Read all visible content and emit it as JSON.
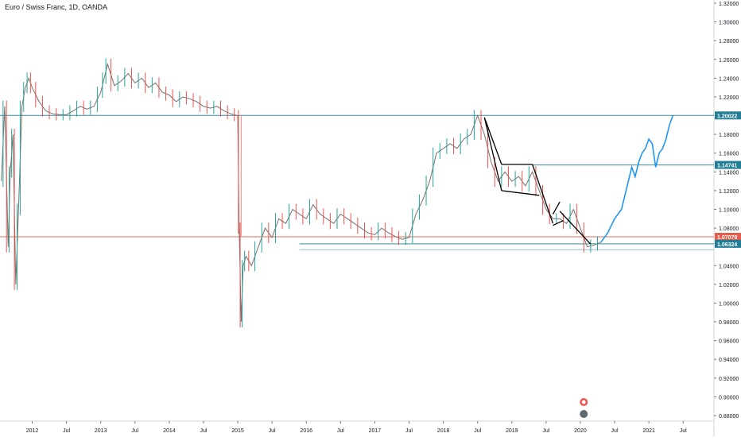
{
  "header": {
    "title": "Euro / Swiss Franc, 1D, OANDA"
  },
  "colors": {
    "up": "#26a69a",
    "down": "#ef5350",
    "candle_body": "#c9a79a",
    "horizontal_line": "#3d9bb5",
    "red_line": "#f28b7e",
    "projection": "#2196f3",
    "pattern": "#000000",
    "label_teal": "#227e94",
    "label_red": "#e35d4c"
  },
  "chart_data": {
    "type": "line",
    "title": "Euro / Swiss Franc, 1D, OANDA",
    "xlabel": "",
    "ylabel": "",
    "ylim": [
      0.87,
      1.325
    ],
    "y_ticks": [
      "1.32000",
      "1.30000",
      "1.28000",
      "1.26000",
      "1.24000",
      "1.22000",
      "1.18000",
      "1.16000",
      "1.14000",
      "1.12000",
      "1.10000",
      "1.08000",
      "1.04000",
      "1.02000",
      "1.00000",
      "0.98000",
      "0.96000",
      "0.94000",
      "0.92000",
      "0.90000",
      "0.88000"
    ],
    "x_ticks": [
      {
        "label": "2012",
        "t": 2012.0
      },
      {
        "label": "Jul",
        "t": 2012.5
      },
      {
        "label": "2013",
        "t": 2013.0
      },
      {
        "label": "Jul",
        "t": 2013.5
      },
      {
        "label": "2014",
        "t": 2014.0
      },
      {
        "label": "Jul",
        "t": 2014.5
      },
      {
        "label": "2015",
        "t": 2015.0
      },
      {
        "label": "Jul",
        "t": 2015.5
      },
      {
        "label": "2016",
        "t": 2016.0
      },
      {
        "label": "Jul",
        "t": 2016.5
      },
      {
        "label": "2017",
        "t": 2017.0
      },
      {
        "label": "Jul",
        "t": 2017.5
      },
      {
        "label": "2018",
        "t": 2018.0
      },
      {
        "label": "Jul",
        "t": 2018.5
      },
      {
        "label": "2019",
        "t": 2019.0
      },
      {
        "label": "Jul",
        "t": 2019.5
      },
      {
        "label": "2020",
        "t": 2020.0
      },
      {
        "label": "Jul",
        "t": 2020.5
      },
      {
        "label": "2021",
        "t": 2021.0
      },
      {
        "label": "Jul",
        "t": 2021.5
      }
    ],
    "price_series": {
      "x": [
        2011.55,
        2011.6,
        2011.65,
        2011.68,
        2011.72,
        2011.76,
        2011.8,
        2011.85,
        2011.9,
        2011.95,
        2012.0,
        2012.1,
        2012.2,
        2012.3,
        2012.4,
        2012.5,
        2012.6,
        2012.7,
        2012.8,
        2012.9,
        2013.0,
        2013.05,
        2013.1,
        2013.2,
        2013.3,
        2013.4,
        2013.5,
        2013.6,
        2013.7,
        2013.8,
        2013.9,
        2014.0,
        2014.1,
        2014.2,
        2014.3,
        2014.4,
        2014.5,
        2014.6,
        2014.7,
        2014.8,
        2014.9,
        2015.0,
        2015.02,
        2015.05,
        2015.08,
        2015.12,
        2015.2,
        2015.3,
        2015.4,
        2015.5,
        2015.6,
        2015.7,
        2015.8,
        2015.9,
        2016.0,
        2016.1,
        2016.2,
        2016.3,
        2016.4,
        2016.5,
        2016.6,
        2016.7,
        2016.8,
        2016.9,
        2017.0,
        2017.1,
        2017.2,
        2017.3,
        2017.4,
        2017.5,
        2017.6,
        2017.7,
        2017.8,
        2017.9,
        2018.0,
        2018.1,
        2018.2,
        2018.3,
        2018.4,
        2018.5,
        2018.6,
        2018.7,
        2018.8,
        2018.9,
        2019.0,
        2019.1,
        2019.2,
        2019.3,
        2019.4,
        2019.5,
        2019.6,
        2019.7,
        2019.8,
        2019.9,
        2020.0,
        2020.1,
        2020.2,
        2020.3
      ],
      "y": [
        1.13,
        1.21,
        1.06,
        1.14,
        1.18,
        1.02,
        1.1,
        1.21,
        1.23,
        1.24,
        1.23,
        1.215,
        1.205,
        1.202,
        1.201,
        1.201,
        1.205,
        1.21,
        1.207,
        1.21,
        1.225,
        1.24,
        1.255,
        1.232,
        1.237,
        1.245,
        1.235,
        1.24,
        1.23,
        1.235,
        1.225,
        1.222,
        1.215,
        1.22,
        1.218,
        1.215,
        1.21,
        1.208,
        1.21,
        1.205,
        1.202,
        1.2,
        1.08,
        0.98,
        1.04,
        1.05,
        1.04,
        1.06,
        1.08,
        1.07,
        1.09,
        1.085,
        1.1,
        1.095,
        1.09,
        1.105,
        1.095,
        1.09,
        1.085,
        1.095,
        1.09,
        1.085,
        1.08,
        1.075,
        1.073,
        1.08,
        1.075,
        1.071,
        1.068,
        1.07,
        1.095,
        1.11,
        1.13,
        1.16,
        1.165,
        1.17,
        1.165,
        1.175,
        1.18,
        1.2,
        1.18,
        1.15,
        1.13,
        1.14,
        1.13,
        1.135,
        1.125,
        1.14,
        1.12,
        1.1,
        1.09,
        1.09,
        1.085,
        1.1,
        1.08,
        1.06,
        1.062,
        1.065
      ]
    },
    "projection_series": {
      "x": [
        2020.3,
        2020.4,
        2020.5,
        2020.6,
        2020.7,
        2020.75,
        2020.8,
        2020.85,
        2020.9,
        2020.95,
        2021.0,
        2021.05,
        2021.1,
        2021.15,
        2021.2,
        2021.25,
        2021.3,
        2021.35
      ],
      "y": [
        1.065,
        1.075,
        1.09,
        1.1,
        1.13,
        1.145,
        1.135,
        1.15,
        1.16,
        1.165,
        1.175,
        1.17,
        1.145,
        1.16,
        1.165,
        1.175,
        1.19,
        1.2
      ]
    },
    "pattern_lines": [
      {
        "x1": 2018.6,
        "y1": 1.198,
        "x2": 2018.85,
        "y2": 1.12
      },
      {
        "x1": 2018.6,
        "y1": 1.198,
        "x2": 2018.85,
        "y2": 1.148
      },
      {
        "x1": 2018.85,
        "y1": 1.148,
        "x2": 2019.3,
        "y2": 1.148
      },
      {
        "x1": 2018.85,
        "y1": 1.12,
        "x2": 2019.4,
        "y2": 1.115
      },
      {
        "x1": 2019.3,
        "y1": 1.148,
        "x2": 2019.6,
        "y2": 1.085
      },
      {
        "x1": 2019.6,
        "y1": 1.095,
        "x2": 2019.7,
        "y2": 1.108
      },
      {
        "x1": 2019.6,
        "y1": 1.083,
        "x2": 2019.75,
        "y2": 1.088
      },
      {
        "x1": 2019.7,
        "y1": 1.098,
        "x2": 2020.15,
        "y2": 1.063
      }
    ],
    "horizontal_levels": [
      {
        "value": 1.20022,
        "label": "1.20022",
        "color": "#227e94",
        "from": 2011.0
      },
      {
        "value": 1.14741,
        "label": "1.14741",
        "color": "#227e94",
        "from": 2019.3
      },
      {
        "value": 1.07078,
        "label": "1.07078",
        "color": "#e35d4c",
        "from": 2011.0
      },
      {
        "value": 1.06324,
        "label": "1.06324",
        "color": "#227e94",
        "from": 2015.9
      },
      {
        "value": 1.057,
        "label": "",
        "color": "#3d9bb5",
        "from": 2015.9
      }
    ],
    "vertical_marker": {
      "t": 2015.05,
      "from": 1.20022,
      "to": 1.07078
    },
    "grid": false,
    "legend": "none"
  }
}
